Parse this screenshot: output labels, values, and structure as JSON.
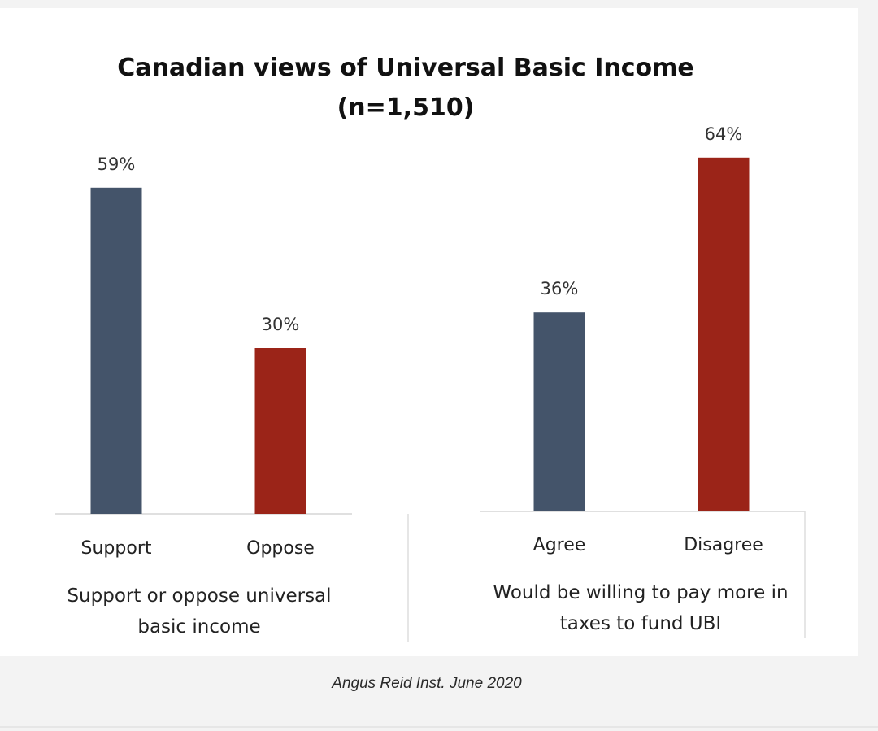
{
  "chart_data": {
    "type": "bar",
    "title": "Canadian views of Universal Basic Income",
    "subtitle": "(n=1,510)",
    "source": "Angus Reid Inst. June 2020",
    "ylim": [
      0,
      70
    ],
    "grid": false,
    "colors": {
      "blue": "#44546a",
      "red": "#9b2418"
    },
    "panels": [
      {
        "caption_lines": [
          "Support or oppose universal",
          "basic income"
        ],
        "categories": [
          "Support",
          "Oppose"
        ],
        "values": [
          59,
          30
        ],
        "value_labels": [
          "59%",
          "30%"
        ],
        "bar_colors": [
          "#44546a",
          "#9b2418"
        ]
      },
      {
        "caption_lines": [
          "Would be willing to pay more in",
          "taxes to fund UBI"
        ],
        "categories": [
          "Agree",
          "Disagree"
        ],
        "values": [
          36,
          64
        ],
        "value_labels": [
          "36%",
          "64%"
        ],
        "bar_colors": [
          "#44546a",
          "#9b2418"
        ]
      }
    ]
  }
}
